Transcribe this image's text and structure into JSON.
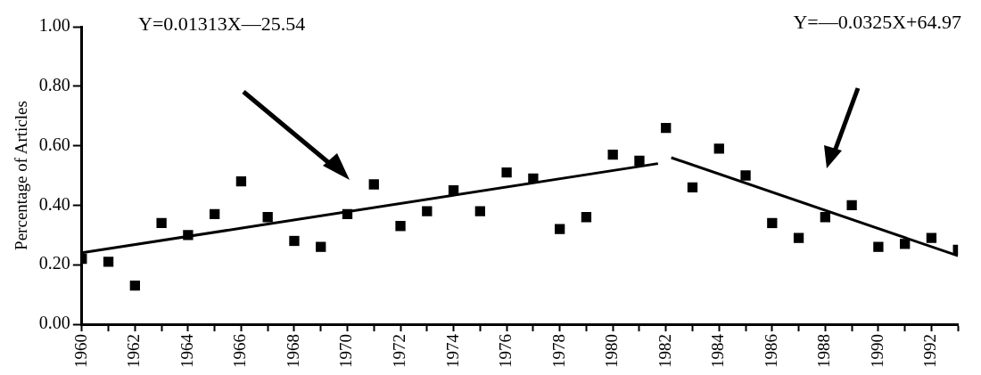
{
  "chart_data": {
    "type": "scatter",
    "ylabel": "Percentage of Articles",
    "annotations": [
      "Y=0.01313X—25.54",
      "Y=—0.0325X+64.97"
    ],
    "x": [
      1960,
      1961,
      1962,
      1963,
      1964,
      1965,
      1966,
      1967,
      1968,
      1969,
      1970,
      1971,
      1972,
      1973,
      1974,
      1975,
      1976,
      1977,
      1978,
      1979,
      1980,
      1981,
      1982,
      1983,
      1984,
      1985,
      1986,
      1987,
      1988,
      1989,
      1990,
      1991,
      1992,
      1993
    ],
    "series": [
      {
        "color": "#000000",
        "marker": "square",
        "values": [
          0.22,
          0.21,
          0.13,
          0.34,
          0.3,
          0.37,
          0.48,
          0.36,
          0.28,
          0.26,
          0.37,
          0.47,
          0.33,
          0.38,
          0.45,
          0.38,
          0.51,
          0.49,
          0.32,
          0.36,
          0.57,
          0.55,
          0.66,
          0.46,
          0.59,
          0.5,
          0.34,
          0.29,
          0.36,
          0.4,
          0.26,
          0.27,
          0.29,
          0.25
        ]
      },
      {
        "type": "line",
        "color": "#000000",
        "marker": "none",
        "x": [
          1960,
          1981.7
        ],
        "values": [
          0.24,
          0.54
        ]
      },
      {
        "type": "line",
        "color": "#000000",
        "marker": "none",
        "x": [
          1982.2,
          1993
        ],
        "values": [
          0.56,
          0.23
        ]
      }
    ],
    "xlim": [
      1960,
      1993
    ],
    "xticks": [
      {
        "value": 1960,
        "label": "1960"
      },
      {
        "value": 1961,
        "label": null
      },
      {
        "value": 1962,
        "label": "1962"
      },
      {
        "value": 1963,
        "label": null
      },
      {
        "value": 1964,
        "label": "1964"
      },
      {
        "value": 1965,
        "label": null
      },
      {
        "value": 1966,
        "label": "1966"
      },
      {
        "value": 1967,
        "label": null
      },
      {
        "value": 1968,
        "label": "1968"
      },
      {
        "value": 1969,
        "label": null
      },
      {
        "value": 1970,
        "label": "1970"
      },
      {
        "value": 1971,
        "label": null
      },
      {
        "value": 1972,
        "label": "1972"
      },
      {
        "value": 1973,
        "label": null
      },
      {
        "value": 1974,
        "label": "1974"
      },
      {
        "value": 1975,
        "label": null
      },
      {
        "value": 1976,
        "label": "1976"
      },
      {
        "value": 1977,
        "label": null
      },
      {
        "value": 1978,
        "label": "1978"
      },
      {
        "value": 1979,
        "label": null
      },
      {
        "value": 1980,
        "label": "1980"
      },
      {
        "value": 1981,
        "label": null
      },
      {
        "value": 1982,
        "label": "1982"
      },
      {
        "value": 1983,
        "label": null
      },
      {
        "value": 1984,
        "label": "1984"
      },
      {
        "value": 1985,
        "label": null
      },
      {
        "value": 1986,
        "label": "1986"
      },
      {
        "value": 1987,
        "label": null
      },
      {
        "value": 1988,
        "label": "1988"
      },
      {
        "value": 1989,
        "label": null
      },
      {
        "value": 1990,
        "label": "1990"
      },
      {
        "value": 1991,
        "label": null
      },
      {
        "value": 1992,
        "label": "1992"
      },
      {
        "value": 1993,
        "label": null
      }
    ],
    "ylim": [
      0,
      1
    ],
    "yticks": [
      {
        "value": 0,
        "label": "0.00"
      },
      {
        "value": 0.2,
        "label": "0.20"
      },
      {
        "value": 0.4,
        "label": "0.40"
      },
      {
        "value": 0.6,
        "label": "0.60"
      },
      {
        "value": 0.8,
        "label": "0.80"
      },
      {
        "value": 1,
        "label": "1.00"
      }
    ],
    "grid": false,
    "legend": false
  }
}
